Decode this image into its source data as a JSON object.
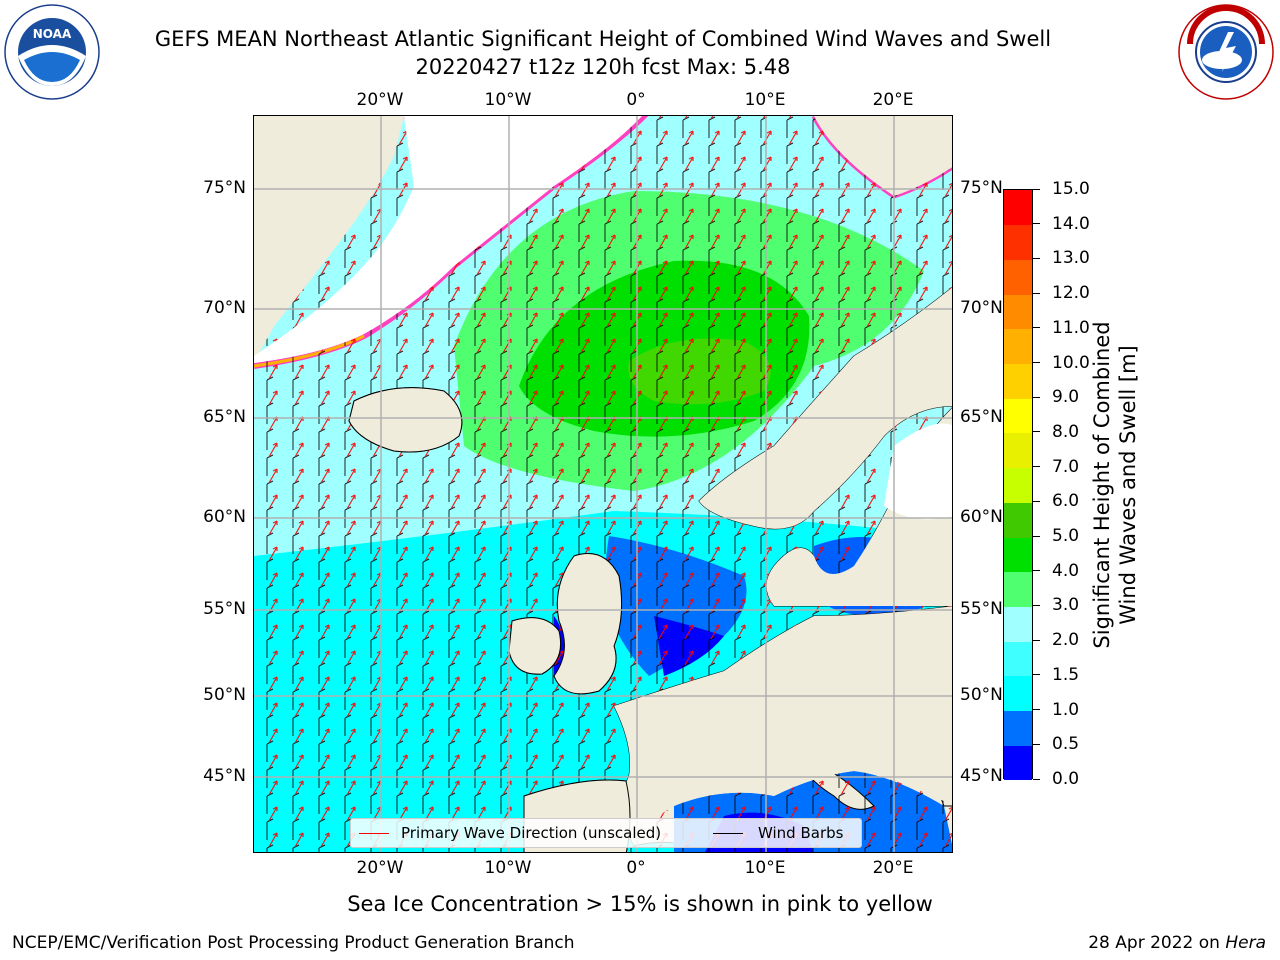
{
  "header": {
    "title": "GEFS MEAN Northeast Atlantic Significant Height of Combined Wind Waves and Swell",
    "subtitle": "20220427 t12z 120h fcst   Max: 5.48"
  },
  "logos": {
    "noaa": {
      "text": "NOAA",
      "ring_text": "NATIONAL OCEANIC AND ATMOSPHERIC ADMINISTRATION · U.S. DEPARTMENT OF COMMERCE"
    },
    "nws": {
      "ring_text": "NATIONAL WEATHER SERVICE"
    }
  },
  "map": {
    "lon_ticks": [
      "20°W",
      "10°W",
      "0°",
      "10°E",
      "20°E"
    ],
    "lat_ticks": [
      "75°N",
      "70°N",
      "65°N",
      "60°N",
      "55°N",
      "50°N",
      "45°N"
    ],
    "legend": {
      "wave_label": "Primary Wave Direction (unscaled)",
      "barb_label": "Wind Barbs",
      "wave_color": "#ff0000",
      "barb_color": "#000000"
    },
    "colors": {
      "land": "#efecdc",
      "ice_free_land": "#ffffff",
      "grid": "#b0b0b0"
    }
  },
  "colorbar": {
    "title_line1": "Significant Height of Combined",
    "title_line2": "Wind Waves and Swell [m]",
    "labels": [
      "0.0",
      "0.5",
      "1.0",
      "1.5",
      "2.0",
      "3.0",
      "4.0",
      "5.0",
      "6.0",
      "7.0",
      "8.0",
      "9.0",
      "10.0",
      "11.0",
      "12.0",
      "13.0",
      "14.0",
      "15.0"
    ],
    "colors": [
      "#0000ff",
      "#0070ff",
      "#00ffff",
      "#40ffff",
      "#a0ffff",
      "#50ff70",
      "#00e000",
      "#40c800",
      "#c8ff00",
      "#e8f000",
      "#ffff00",
      "#ffd000",
      "#ffb000",
      "#ff8c00",
      "#ff6000",
      "#ff3000",
      "#ff0000"
    ]
  },
  "footer": {
    "note": "Sea Ice Concentration > 15% is shown in pink to yellow",
    "left": "NCEP/EMC/Verification Post Processing Product Generation Branch",
    "right_prefix": "28 Apr 2022 on ",
    "right_host": "Hera"
  }
}
